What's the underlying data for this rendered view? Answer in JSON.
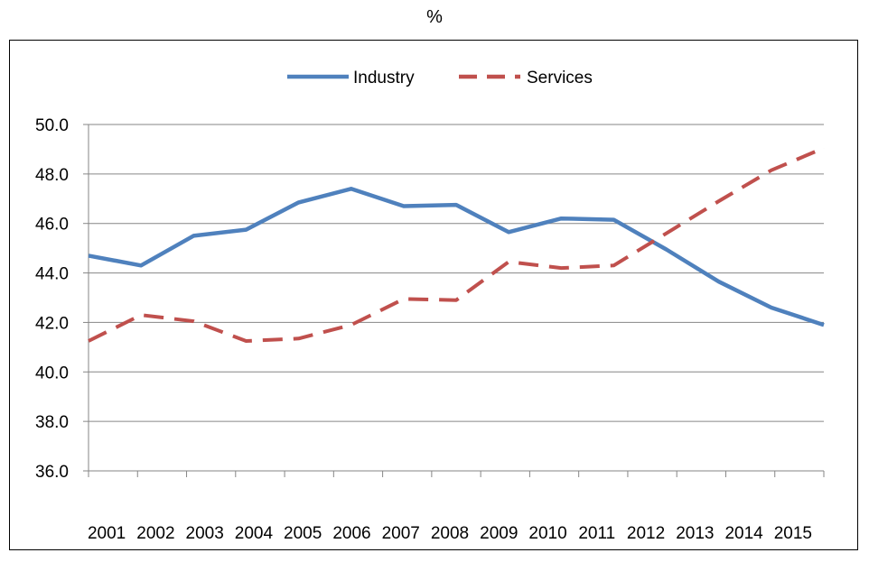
{
  "chart_data": {
    "type": "line",
    "title": "%",
    "xlabel": "",
    "ylabel": "",
    "categories": [
      "2001",
      "2002",
      "2003",
      "2004",
      "2005",
      "2006",
      "2007",
      "2008",
      "2009",
      "2010",
      "2011",
      "2012",
      "2013",
      "2014",
      "2015"
    ],
    "ylim": [
      36,
      50
    ],
    "yticks": [
      "36.0",
      "38.0",
      "40.0",
      "42.0",
      "44.0",
      "46.0",
      "48.0",
      "50.0"
    ],
    "grid": true,
    "legend_position": "top",
    "series": [
      {
        "name": "Industry",
        "style": "solid",
        "color": "#4F81BD",
        "values": [
          44.7,
          44.3,
          45.5,
          45.75,
          46.85,
          47.4,
          46.7,
          46.75,
          45.65,
          46.2,
          46.15,
          44.95,
          43.65,
          42.6,
          41.9
        ]
      },
      {
        "name": "Services",
        "style": "dashed",
        "color": "#C0504D",
        "values": [
          41.25,
          42.3,
          42.05,
          41.25,
          41.35,
          41.9,
          42.95,
          42.9,
          44.45,
          44.2,
          44.3,
          45.6,
          46.9,
          48.15,
          49.05
        ]
      }
    ]
  }
}
